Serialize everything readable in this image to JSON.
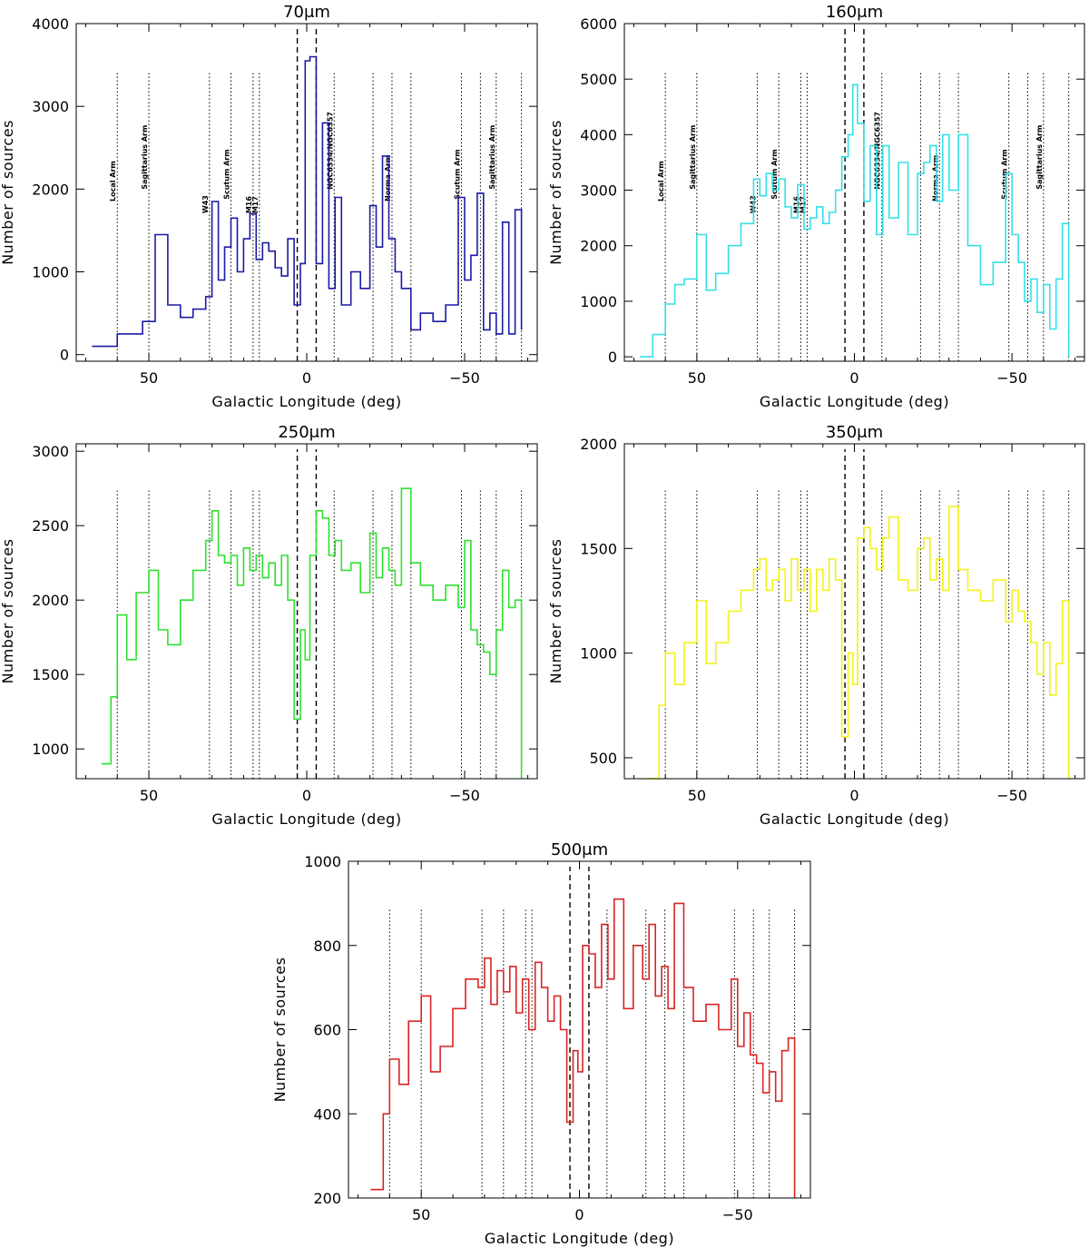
{
  "chart_data": [
    {
      "type": "line",
      "title": "70μm",
      "xlabel": "Galactic Longitude (deg)",
      "ylabel": "Number of sources",
      "xlim": [
        73,
        -73
      ],
      "ylim": [
        -80,
        4000
      ],
      "xticks": [
        50,
        0,
        -50
      ],
      "xtick_labels": [
        "50",
        "0",
        "−50"
      ],
      "yticks": [
        0,
        1000,
        2000,
        3000,
        4000
      ],
      "ytick_labels": [
        "0",
        "1000",
        "2000",
        "3000",
        "4000"
      ],
      "color": "#1a1aa6",
      "x": [
        68,
        60,
        52,
        48,
        44,
        40,
        36,
        32,
        30,
        28,
        26,
        24,
        22,
        20,
        18,
        16,
        14,
        12,
        10,
        8,
        6,
        4,
        2,
        0.5,
        -1,
        -3,
        -5,
        -7,
        -9,
        -11,
        -14,
        -17,
        -20,
        -22,
        -24,
        -26,
        -28,
        -30,
        -33,
        -36,
        -40,
        -44,
        -48,
        -50,
        -52,
        -54,
        -56,
        -58,
        -60,
        -62,
        -64,
        -66,
        -68
      ],
      "y": [
        100,
        250,
        400,
        1450,
        600,
        450,
        550,
        700,
        1850,
        900,
        1300,
        1650,
        1000,
        1400,
        1700,
        1150,
        1350,
        1250,
        1050,
        950,
        1400,
        600,
        1100,
        3550,
        3600,
        1100,
        2800,
        800,
        1900,
        600,
        1000,
        800,
        1800,
        1300,
        2400,
        1400,
        1000,
        800,
        300,
        500,
        400,
        600,
        1900,
        900,
        1200,
        1950,
        300,
        500,
        250,
        1600,
        250,
        1750,
        300
      ],
      "markers": [
        {
          "x": 60,
          "label": "Local Arm"
        },
        {
          "x": 50,
          "label": "Sagittarius Arm"
        },
        {
          "x": 30.8,
          "label": "W43"
        },
        {
          "x": 24,
          "label": "Scutum Arm"
        },
        {
          "x": 17,
          "label": "M16"
        },
        {
          "x": 15,
          "label": "M17"
        },
        {
          "x": -8.7,
          "label": "NGC6334/NGC6357"
        },
        {
          "x": -21,
          "label": ""
        },
        {
          "x": -27,
          "label": "Norma Arm"
        },
        {
          "x": -33,
          "label": ""
        },
        {
          "x": -49,
          "label": "Scutum Arm"
        },
        {
          "x": -55,
          "label": ""
        },
        {
          "x": -60,
          "label": "Sagittarius Arm"
        },
        {
          "x": -68,
          "label": ""
        }
      ],
      "gc_lines": [
        3,
        -3
      ]
    },
    {
      "type": "line",
      "title": "160μm",
      "xlabel": "Galactic Longitude (deg)",
      "ylabel": "Number of sources",
      "xlim": [
        73,
        -73
      ],
      "ylim": [
        -80,
        6000
      ],
      "xticks": [
        50,
        0,
        -50
      ],
      "xtick_labels": [
        "50",
        "0",
        "−50"
      ],
      "yticks": [
        0,
        1000,
        2000,
        3000,
        4000,
        5000,
        6000
      ],
      "ytick_labels": [
        "0",
        "1000",
        "2000",
        "3000",
        "4000",
        "5000",
        "6000"
      ],
      "color": "#33e0e6",
      "x": [
        68,
        64,
        60,
        57,
        54,
        50,
        47,
        44,
        40,
        36,
        32,
        30,
        28,
        26,
        24,
        22,
        20,
        18,
        16,
        14,
        12,
        10,
        8,
        6,
        4,
        2,
        0.5,
        -1,
        -3,
        -5,
        -7,
        -9,
        -11,
        -14,
        -17,
        -20,
        -22,
        -24,
        -26,
        -28,
        -30,
        -33,
        -36,
        -40,
        -44,
        -48,
        -50,
        -52,
        -54,
        -56,
        -58,
        -60,
        -62,
        -64,
        -66,
        -68
      ],
      "y": [
        0,
        400,
        950,
        1300,
        1400,
        2200,
        1200,
        1500,
        2000,
        2400,
        3200,
        2900,
        3300,
        3000,
        3200,
        2700,
        2500,
        3100,
        2300,
        2500,
        2700,
        2400,
        2600,
        3000,
        3600,
        4000,
        4900,
        4200,
        2800,
        3800,
        2200,
        3800,
        2500,
        3500,
        2200,
        3300,
        3500,
        3800,
        2800,
        4000,
        3000,
        4000,
        2000,
        1300,
        1700,
        3300,
        2200,
        1700,
        1000,
        1400,
        800,
        1300,
        500,
        1400,
        2400,
        0
      ],
      "markers": [
        {
          "x": 60,
          "label": "Local Arm"
        },
        {
          "x": 50,
          "label": "Sagittarius Arm"
        },
        {
          "x": 30.8,
          "label": "W43"
        },
        {
          "x": 24,
          "label": "Scutum Arm"
        },
        {
          "x": 17,
          "label": "M16"
        },
        {
          "x": 15,
          "label": "M17"
        },
        {
          "x": -8.7,
          "label": "NGC6334/NGC6357"
        },
        {
          "x": -21,
          "label": ""
        },
        {
          "x": -27,
          "label": "Norma Arm"
        },
        {
          "x": -33,
          "label": ""
        },
        {
          "x": -49,
          "label": "Scutum Arm"
        },
        {
          "x": -55,
          "label": ""
        },
        {
          "x": -60,
          "label": "Sagittarius Arm"
        },
        {
          "x": -68,
          "label": ""
        }
      ],
      "gc_lines": [
        3,
        -3
      ]
    },
    {
      "type": "line",
      "title": "250μm",
      "xlabel": "Galactic Longitude (deg)",
      "ylabel": "Number of sources",
      "xlim": [
        73,
        -73
      ],
      "ylim": [
        800,
        3050
      ],
      "xticks": [
        50,
        0,
        -50
      ],
      "xtick_labels": [
        "50",
        "0",
        "−50"
      ],
      "yticks": [
        1000,
        1500,
        2000,
        2500,
        3000
      ],
      "ytick_labels": [
        "1000",
        "1500",
        "2000",
        "2500",
        "3000"
      ],
      "color": "#2ee02e",
      "x": [
        65,
        62,
        60,
        57,
        54,
        50,
        47,
        44,
        40,
        36,
        32,
        30,
        28,
        26,
        24,
        22,
        20,
        18,
        16,
        14,
        12,
        10,
        8,
        6,
        4,
        2,
        0.5,
        -1,
        -3,
        -5,
        -7,
        -9,
        -11,
        -14,
        -17,
        -20,
        -22,
        -24,
        -26,
        -28,
        -30,
        -33,
        -36,
        -40,
        -44,
        -48,
        -50,
        -52,
        -54,
        -56,
        -58,
        -60,
        -62,
        -64,
        -66,
        -68
      ],
      "y": [
        900,
        1350,
        1900,
        1600,
        2050,
        2200,
        1800,
        1700,
        2000,
        2200,
        2400,
        2600,
        2300,
        2250,
        2300,
        2100,
        2350,
        2200,
        2300,
        2150,
        2250,
        2100,
        2300,
        2000,
        1200,
        1800,
        1600,
        2300,
        2600,
        2550,
        2300,
        2400,
        2200,
        2250,
        2050,
        2450,
        2150,
        2350,
        2200,
        2100,
        2750,
        2250,
        2100,
        2000,
        2100,
        1950,
        2400,
        1800,
        1700,
        1650,
        1500,
        1800,
        2200,
        1950,
        2000,
        800
      ],
      "markers": [
        {
          "x": 60,
          "label": ""
        },
        {
          "x": 50,
          "label": ""
        },
        {
          "x": 30.8,
          "label": ""
        },
        {
          "x": 24,
          "label": ""
        },
        {
          "x": 17,
          "label": ""
        },
        {
          "x": 15,
          "label": ""
        },
        {
          "x": -8.7,
          "label": ""
        },
        {
          "x": -21,
          "label": ""
        },
        {
          "x": -27,
          "label": ""
        },
        {
          "x": -33,
          "label": ""
        },
        {
          "x": -49,
          "label": ""
        },
        {
          "x": -55,
          "label": ""
        },
        {
          "x": -60,
          "label": ""
        },
        {
          "x": -68,
          "label": ""
        }
      ],
      "gc_lines": [
        3,
        -3
      ]
    },
    {
      "type": "line",
      "title": "350μm",
      "xlabel": "Galactic Longitude (deg)",
      "ylabel": "Number of sources",
      "xlim": [
        73,
        -73
      ],
      "ylim": [
        400,
        2000
      ],
      "xticks": [
        50,
        0,
        -50
      ],
      "xtick_labels": [
        "50",
        "0",
        "−50"
      ],
      "yticks": [
        500,
        1000,
        1500,
        2000
      ],
      "ytick_labels": [
        "500",
        "1000",
        "1500",
        "2000"
      ],
      "color": "#f2f21a",
      "x": [
        66,
        62,
        60,
        57,
        54,
        50,
        47,
        44,
        40,
        36,
        32,
        30,
        28,
        26,
        24,
        22,
        20,
        18,
        16,
        14,
        12,
        10,
        8,
        6,
        4,
        2,
        0.5,
        -1,
        -3,
        -5,
        -7,
        -9,
        -11,
        -14,
        -17,
        -20,
        -22,
        -24,
        -26,
        -28,
        -30,
        -33,
        -36,
        -40,
        -44,
        -48,
        -50,
        -52,
        -54,
        -56,
        -58,
        -60,
        -62,
        -64,
        -66,
        -68
      ],
      "y": [
        400,
        750,
        1000,
        850,
        1050,
        1250,
        950,
        1050,
        1200,
        1300,
        1400,
        1450,
        1300,
        1350,
        1400,
        1250,
        1450,
        1300,
        1400,
        1200,
        1400,
        1300,
        1450,
        1350,
        600,
        1000,
        850,
        1550,
        1600,
        1500,
        1400,
        1550,
        1650,
        1350,
        1300,
        1500,
        1550,
        1350,
        1450,
        1300,
        1700,
        1400,
        1300,
        1250,
        1350,
        1150,
        1300,
        1200,
        1150,
        1050,
        900,
        1050,
        800,
        950,
        1250,
        400
      ],
      "markers": [
        {
          "x": 60,
          "label": ""
        },
        {
          "x": 50,
          "label": ""
        },
        {
          "x": 30.8,
          "label": ""
        },
        {
          "x": 24,
          "label": ""
        },
        {
          "x": 17,
          "label": ""
        },
        {
          "x": 15,
          "label": ""
        },
        {
          "x": -8.7,
          "label": ""
        },
        {
          "x": -21,
          "label": ""
        },
        {
          "x": -27,
          "label": ""
        },
        {
          "x": -33,
          "label": ""
        },
        {
          "x": -49,
          "label": ""
        },
        {
          "x": -55,
          "label": ""
        },
        {
          "x": -60,
          "label": ""
        },
        {
          "x": -68,
          "label": ""
        }
      ],
      "gc_lines": [
        3,
        -3
      ]
    },
    {
      "type": "line",
      "title": "500μm",
      "xlabel": "Galactic Longitude (deg)",
      "ylabel": "Number of sources",
      "xlim": [
        73,
        -73
      ],
      "ylim": [
        200,
        1000
      ],
      "xticks": [
        50,
        0,
        -50
      ],
      "xtick_labels": [
        "50",
        "0",
        "−50"
      ],
      "yticks": [
        200,
        400,
        600,
        800,
        1000
      ],
      "ytick_labels": [
        "200",
        "400",
        "600",
        "800",
        "1000"
      ],
      "color": "#d92424",
      "x": [
        66,
        62,
        60,
        57,
        54,
        50,
        47,
        44,
        40,
        36,
        32,
        30,
        28,
        26,
        24,
        22,
        20,
        18,
        16,
        14,
        12,
        10,
        8,
        6,
        4,
        2,
        0.5,
        -1,
        -3,
        -5,
        -7,
        -9,
        -11,
        -14,
        -17,
        -20,
        -22,
        -24,
        -26,
        -28,
        -30,
        -33,
        -36,
        -40,
        -44,
        -48,
        -50,
        -52,
        -54,
        -56,
        -58,
        -60,
        -62,
        -64,
        -66,
        -68
      ],
      "y": [
        220,
        400,
        530,
        470,
        620,
        680,
        500,
        560,
        650,
        720,
        700,
        770,
        660,
        740,
        690,
        750,
        640,
        720,
        600,
        760,
        700,
        620,
        680,
        600,
        380,
        550,
        500,
        800,
        780,
        700,
        850,
        720,
        910,
        650,
        800,
        720,
        850,
        680,
        750,
        650,
        900,
        700,
        620,
        660,
        600,
        720,
        560,
        640,
        540,
        520,
        450,
        500,
        430,
        550,
        580,
        200
      ],
      "markers": [
        {
          "x": 60,
          "label": ""
        },
        {
          "x": 50,
          "label": ""
        },
        {
          "x": 30.8,
          "label": ""
        },
        {
          "x": 24,
          "label": ""
        },
        {
          "x": 17,
          "label": ""
        },
        {
          "x": 15,
          "label": ""
        },
        {
          "x": -8.7,
          "label": ""
        },
        {
          "x": -21,
          "label": ""
        },
        {
          "x": -27,
          "label": ""
        },
        {
          "x": -33,
          "label": ""
        },
        {
          "x": -49,
          "label": ""
        },
        {
          "x": -55,
          "label": ""
        },
        {
          "x": -60,
          "label": ""
        },
        {
          "x": -68,
          "label": ""
        }
      ],
      "gc_lines": [
        3,
        -3
      ]
    }
  ]
}
